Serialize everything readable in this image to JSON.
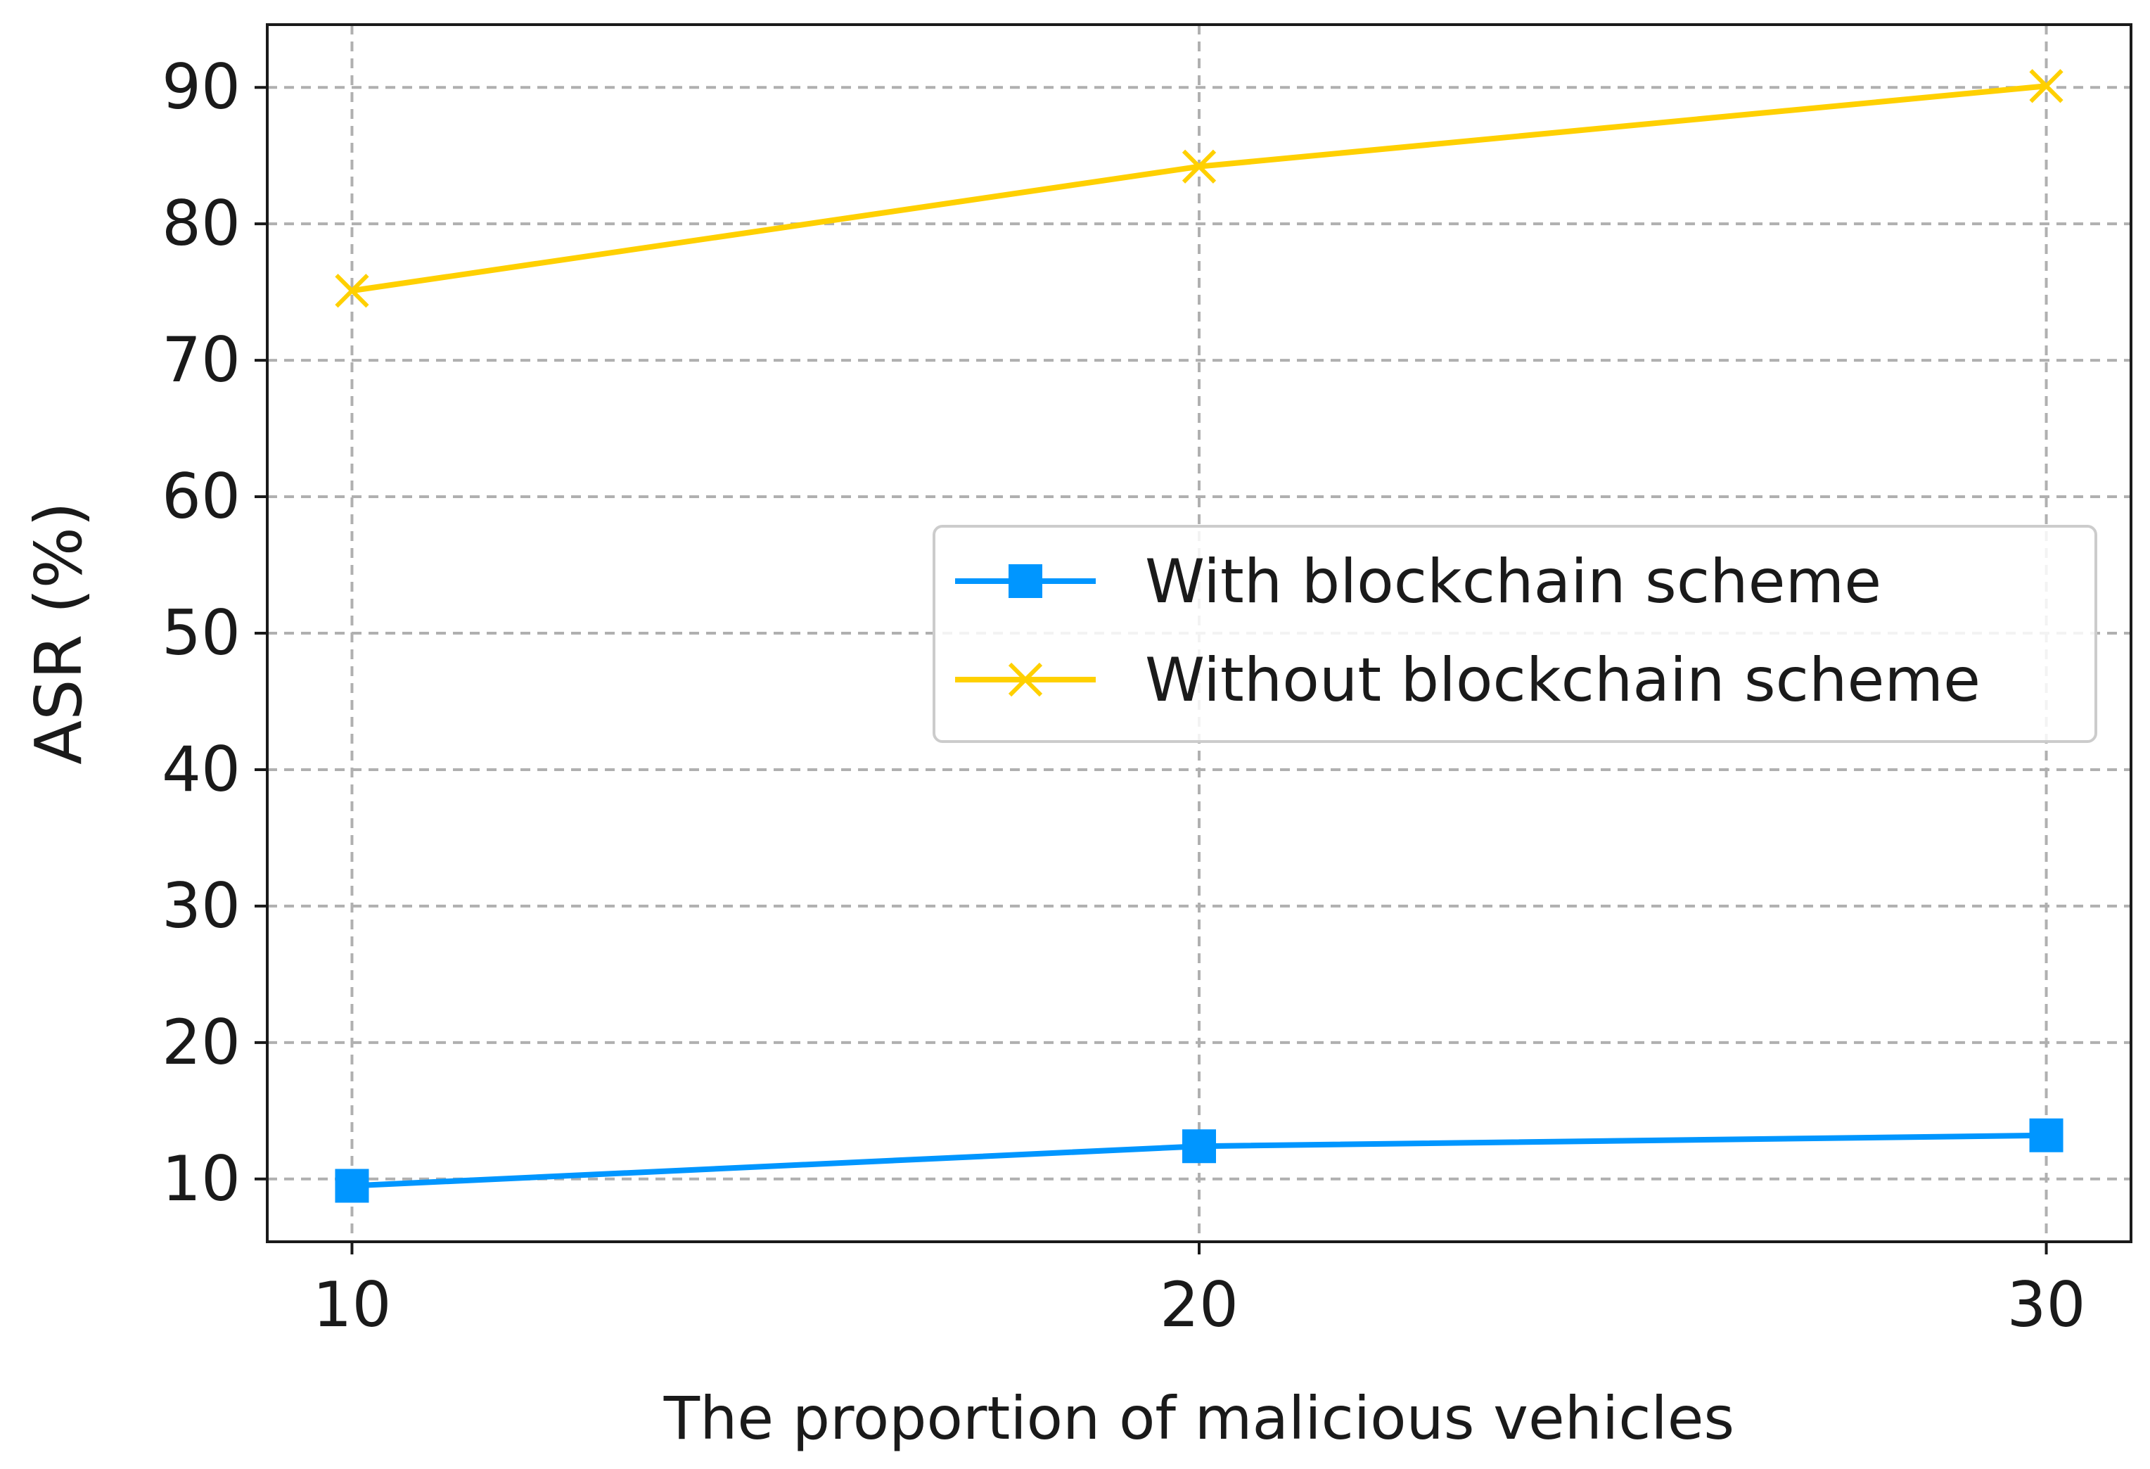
{
  "chart_data": {
    "type": "line",
    "title": "",
    "xlabel": "The proportion of malicious vehicles",
    "ylabel": "ASR (%)",
    "x": [
      10,
      20,
      30
    ],
    "xticks": [
      10,
      20,
      30
    ],
    "xtick_labels": [
      "10",
      "20",
      "30"
    ],
    "yticks": [
      10,
      20,
      30,
      40,
      50,
      60,
      70,
      80,
      90
    ],
    "ytick_labels": [
      "10",
      "20",
      "30",
      "40",
      "50",
      "60",
      "70",
      "80",
      "90"
    ],
    "xlim": [
      9,
      31
    ],
    "ylim": [
      5.4,
      94.6
    ],
    "grid": true,
    "legend_position": "center-right",
    "series": [
      {
        "name": "With blockchain scheme",
        "values": [
          9.5,
          12.4,
          13.2
        ],
        "color": "#0096ff",
        "marker": "square"
      },
      {
        "name": "Without blockchain scheme",
        "values": [
          75.1,
          84.2,
          90.1
        ],
        "color": "#ffd000",
        "marker": "x"
      }
    ]
  }
}
